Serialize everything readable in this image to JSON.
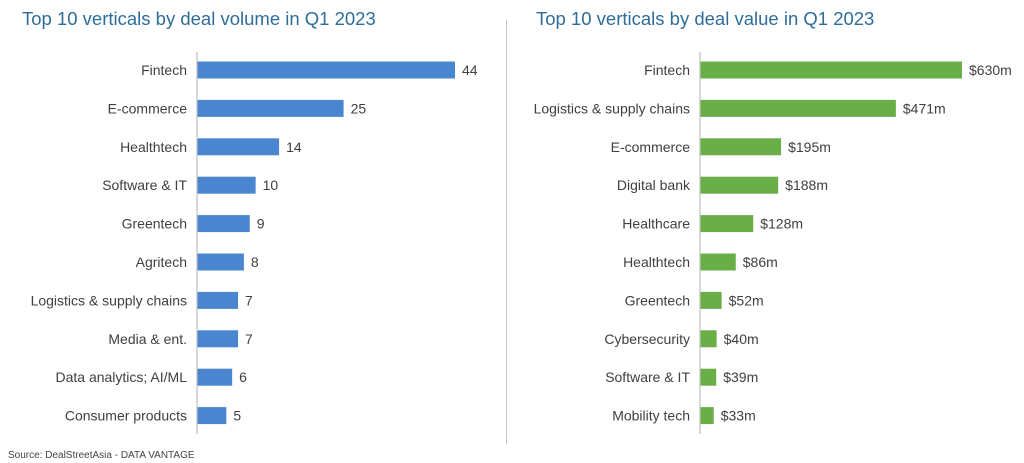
{
  "source": "Source: DealStreetAsia - DATA VANTAGE",
  "chart_data": [
    {
      "type": "bar",
      "orientation": "horizontal",
      "title": "Top 10 verticals by deal volume in Q1 2023",
      "xlabel": "",
      "ylabel": "",
      "categories": [
        "Fintech",
        "E-commerce",
        "Healthtech",
        "Software & IT",
        "Greentech",
        "Agritech",
        "Logistics & supply chains",
        "Media & ent.",
        "Data analytics; AI/ML",
        "Consumer products"
      ],
      "values": [
        44,
        25,
        14,
        10,
        9,
        8,
        7,
        7,
        6,
        5
      ],
      "labels": [
        "44",
        "25",
        "14",
        "10",
        "9",
        "8",
        "7",
        "7",
        "6",
        "5"
      ],
      "xlim": [
        0,
        44
      ],
      "grid": false,
      "color": "#4a86cf"
    },
    {
      "type": "bar",
      "orientation": "horizontal",
      "title": "Top 10 verticals by deal value in Q1 2023",
      "xlabel": "",
      "ylabel": "",
      "unit": "US$ million",
      "categories": [
        "Fintech",
        "Logistics & supply chains",
        "E-commerce",
        "Digital bank",
        "Healthcare",
        "Healthtech",
        "Greentech",
        "Cybersecurity",
        "Software & IT",
        "Mobility tech"
      ],
      "values": [
        630,
        471,
        195,
        188,
        128,
        86,
        52,
        40,
        39,
        33
      ],
      "labels": [
        "$630m",
        "$471m",
        "$195m",
        "$188m",
        "$128m",
        "$86m",
        "$52m",
        "$40m",
        "$39m",
        "$33m"
      ],
      "xlim": [
        0,
        630
      ],
      "grid": false,
      "color": "#6aae47"
    }
  ]
}
